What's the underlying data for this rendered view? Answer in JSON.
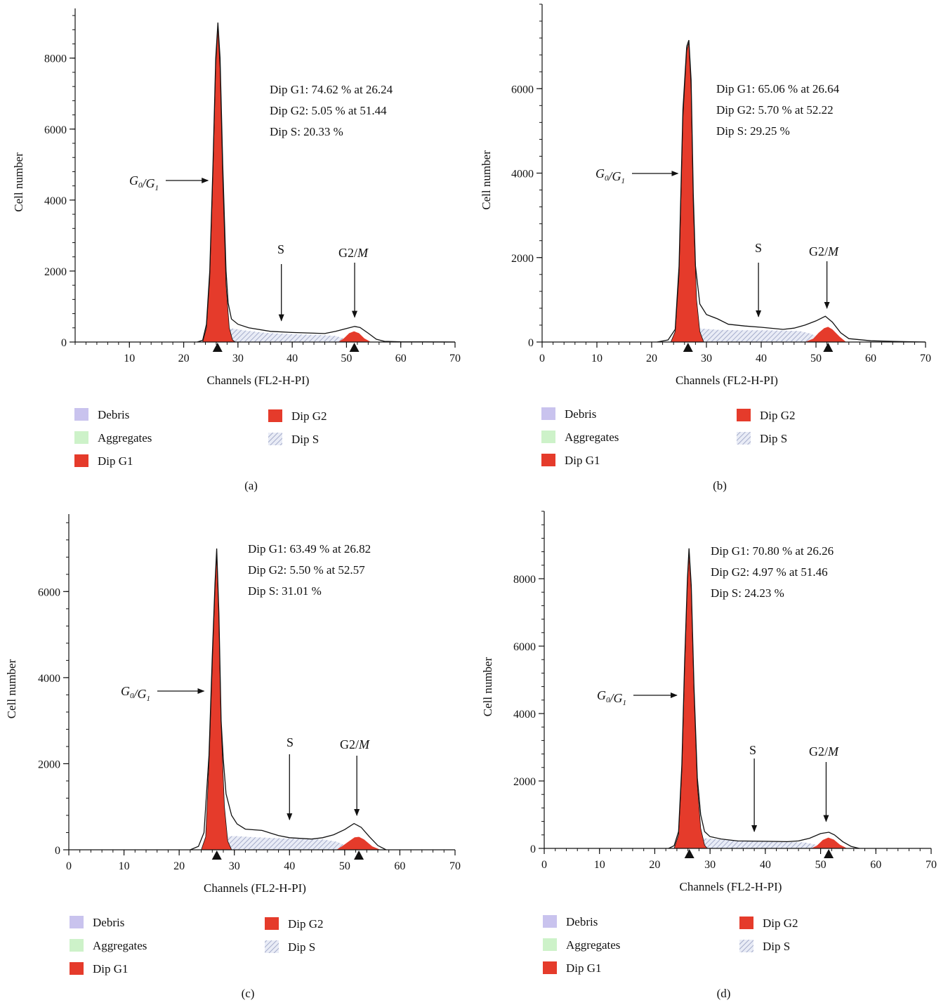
{
  "legend": {
    "items": [
      {
        "label": "Debris",
        "color": "#c9c3ee",
        "kind": "solid"
      },
      {
        "label": "Aggregates",
        "color": "#cdf2c9",
        "kind": "solid"
      },
      {
        "label": "Dip G1",
        "color": "#e53b2b",
        "kind": "solid"
      },
      {
        "label": "Dip G2",
        "color": "#e53b2b",
        "kind": "solid"
      },
      {
        "label": "Dip S",
        "color": "#a9b1cf",
        "kind": "hatch"
      }
    ]
  },
  "annotation_labels": {
    "g0": "G",
    "g0_sub": "0",
    "slash": "/",
    "g1": "G",
    "g1_sub": "1",
    "s": "S",
    "g2": "G2/",
    "m": "M"
  },
  "chart_data": [
    {
      "panel": "(a)",
      "type": "area",
      "xlabel": "Channels (FL2-H-PI)",
      "ylabel": "Cell number",
      "xlim": [
        0,
        70
      ],
      "ylim": [
        0,
        9400
      ],
      "xticks": [
        10,
        20,
        30,
        40,
        50,
        60,
        70
      ],
      "yticks": [
        0,
        2000,
        4000,
        6000,
        8000
      ],
      "stats": [
        "Dip G1: 74.62 % at 26.24",
        "Dip G2: 5.05 % at 51.44",
        "Dip S: 20.33 %"
      ],
      "g1_peak": 26.24,
      "g2_peak": 51.44,
      "arrow_targets": {
        "g1": [
          25,
          5000
        ],
        "s": [
          38,
          600
        ],
        "g2": [
          51.5,
          700
        ]
      },
      "total": [
        [
          22.5,
          0
        ],
        [
          23.5,
          50
        ],
        [
          24.2,
          500
        ],
        [
          24.8,
          2000
        ],
        [
          25.4,
          5000
        ],
        [
          25.9,
          8000
        ],
        [
          26.3,
          9000
        ],
        [
          26.7,
          8000
        ],
        [
          27.2,
          5000
        ],
        [
          27.8,
          2000
        ],
        [
          28.2,
          1100
        ],
        [
          28.8,
          650
        ],
        [
          30,
          500
        ],
        [
          32,
          400
        ],
        [
          36,
          300
        ],
        [
          40,
          270
        ],
        [
          44,
          250
        ],
        [
          46,
          240
        ],
        [
          48,
          300
        ],
        [
          50,
          380
        ],
        [
          51.5,
          440
        ],
        [
          52.5,
          410
        ],
        [
          54,
          250
        ],
        [
          55.5,
          80
        ],
        [
          57,
          20
        ],
        [
          60,
          5
        ],
        [
          70,
          0
        ]
      ],
      "g1": [
        [
          23.5,
          0
        ],
        [
          24.2,
          400
        ],
        [
          24.8,
          1800
        ],
        [
          25.4,
          4800
        ],
        [
          25.9,
          7800
        ],
        [
          26.3,
          8900
        ],
        [
          26.7,
          7700
        ],
        [
          27.2,
          4600
        ],
        [
          27.8,
          1600
        ],
        [
          28.4,
          400
        ],
        [
          29,
          60
        ],
        [
          29.5,
          0
        ]
      ],
      "g2": [
        [
          48.5,
          0
        ],
        [
          49.5,
          100
        ],
        [
          50.5,
          250
        ],
        [
          51.4,
          300
        ],
        [
          52.3,
          250
        ],
        [
          53.3,
          100
        ],
        [
          54.5,
          0
        ]
      ],
      "s": [
        [
          26,
          0
        ],
        [
          27,
          300
        ],
        [
          29,
          380
        ],
        [
          31,
          330
        ],
        [
          35,
          260
        ],
        [
          40,
          220
        ],
        [
          45,
          200
        ],
        [
          48,
          170
        ],
        [
          50,
          80
        ],
        [
          51.5,
          0
        ]
      ]
    },
    {
      "panel": "(b)",
      "type": "area",
      "xlabel": "Channels (FL2-H-PI)",
      "ylabel": "Cell number",
      "xlim": [
        0,
        70
      ],
      "ylim": [
        0,
        8000
      ],
      "xticks": [
        0,
        10,
        20,
        30,
        40,
        50,
        60,
        70
      ],
      "yticks": [
        0,
        2000,
        4000,
        6000
      ],
      "stats": [
        "Dip G1: 65.06 % at 26.64",
        "Dip G2: 5.70 % at 52.22",
        "Dip S: 29.25 %"
      ],
      "g1_peak": 26.64,
      "g2_peak": 52.22,
      "arrow_targets": {
        "g1": [
          25.3,
          4100
        ],
        "s": [
          39.5,
          600
        ],
        "g2": [
          52,
          800
        ]
      },
      "total": [
        [
          21,
          0
        ],
        [
          23,
          50
        ],
        [
          24.3,
          300
        ],
        [
          25,
          1800
        ],
        [
          25.7,
          5500
        ],
        [
          26.4,
          7000
        ],
        [
          26.8,
          7150
        ],
        [
          27.2,
          6200
        ],
        [
          27.6,
          3500
        ],
        [
          28,
          1800
        ],
        [
          28.8,
          900
        ],
        [
          30,
          650
        ],
        [
          32,
          550
        ],
        [
          34,
          420
        ],
        [
          37,
          380
        ],
        [
          40,
          350
        ],
        [
          44,
          300
        ],
        [
          46,
          330
        ],
        [
          48,
          400
        ],
        [
          50,
          500
        ],
        [
          51.7,
          610
        ],
        [
          53,
          470
        ],
        [
          54.5,
          220
        ],
        [
          56,
          80
        ],
        [
          60,
          30
        ],
        [
          66,
          10
        ],
        [
          70,
          0
        ]
      ],
      "g1": [
        [
          23.5,
          0
        ],
        [
          24.3,
          250
        ],
        [
          25,
          1600
        ],
        [
          25.7,
          5300
        ],
        [
          26.4,
          6900
        ],
        [
          26.8,
          7100
        ],
        [
          27.2,
          6000
        ],
        [
          27.6,
          3200
        ],
        [
          28.2,
          1000
        ],
        [
          28.8,
          250
        ],
        [
          29.5,
          0
        ]
      ],
      "g2": [
        [
          48,
          0
        ],
        [
          49.5,
          80
        ],
        [
          50.5,
          220
        ],
        [
          51.5,
          330
        ],
        [
          52.2,
          360
        ],
        [
          53,
          300
        ],
        [
          54.3,
          130
        ],
        [
          55.5,
          0
        ]
      ],
      "s": [
        [
          26,
          0
        ],
        [
          27,
          300
        ],
        [
          29,
          320
        ],
        [
          32,
          290
        ],
        [
          36,
          280
        ],
        [
          40,
          280
        ],
        [
          44,
          270
        ],
        [
          47,
          260
        ],
        [
          49,
          200
        ],
        [
          51,
          80
        ],
        [
          52,
          0
        ]
      ]
    },
    {
      "panel": "(c)",
      "type": "area",
      "xlabel": "Channels (FL2-H-PI)",
      "ylabel": "Cell number",
      "xlim": [
        0,
        70
      ],
      "ylim": [
        0,
        7800
      ],
      "xticks": [
        0,
        10,
        20,
        30,
        40,
        50,
        60,
        70
      ],
      "yticks": [
        0,
        2000,
        4000,
        6000
      ],
      "stats": [
        "Dip G1: 63.49 % at 26.82",
        "Dip G2: 5.50 % at 52.57",
        "Dip S: 31.01 %"
      ],
      "g1_peak": 26.82,
      "g2_peak": 52.57,
      "arrow_targets": {
        "g1": [
          25,
          3950
        ],
        "s": [
          40,
          700
        ],
        "g2": [
          52.2,
          800
        ]
      },
      "total": [
        [
          22,
          0
        ],
        [
          23.5,
          80
        ],
        [
          24.5,
          400
        ],
        [
          25.4,
          2200
        ],
        [
          26,
          4500
        ],
        [
          26.5,
          6200
        ],
        [
          26.8,
          7000
        ],
        [
          27.2,
          5500
        ],
        [
          27.6,
          3000
        ],
        [
          28,
          2100
        ],
        [
          28.5,
          1300
        ],
        [
          29.5,
          800
        ],
        [
          30.5,
          600
        ],
        [
          32,
          480
        ],
        [
          35,
          450
        ],
        [
          38,
          330
        ],
        [
          40,
          280
        ],
        [
          44,
          250
        ],
        [
          46,
          280
        ],
        [
          48,
          350
        ],
        [
          50,
          470
        ],
        [
          51.7,
          610
        ],
        [
          53,
          520
        ],
        [
          54.5,
          300
        ],
        [
          56,
          100
        ],
        [
          57.5,
          0
        ]
      ],
      "g1": [
        [
          24,
          0
        ],
        [
          24.8,
          300
        ],
        [
          25.4,
          2000
        ],
        [
          26,
          4300
        ],
        [
          26.5,
          6100
        ],
        [
          26.8,
          6900
        ],
        [
          27.2,
          5400
        ],
        [
          27.6,
          2900
        ],
        [
          28.2,
          1000
        ],
        [
          28.8,
          200
        ],
        [
          29.5,
          0
        ]
      ],
      "g2": [
        [
          48.5,
          0
        ],
        [
          49.5,
          80
        ],
        [
          50.8,
          200
        ],
        [
          51.8,
          290
        ],
        [
          52.6,
          300
        ],
        [
          53.5,
          240
        ],
        [
          55,
          80
        ],
        [
          56.5,
          0
        ]
      ],
      "s": [
        [
          26.5,
          0
        ],
        [
          27.5,
          300
        ],
        [
          30,
          320
        ],
        [
          34,
          290
        ],
        [
          38,
          270
        ],
        [
          42,
          250
        ],
        [
          46,
          240
        ],
        [
          48.5,
          190
        ],
        [
          50.5,
          80
        ],
        [
          52,
          0
        ]
      ]
    },
    {
      "panel": "(d)",
      "type": "area",
      "xlabel": "Channels (FL2-H-PI)",
      "ylabel": "Cell number",
      "xlim": [
        0,
        70
      ],
      "ylim": [
        0,
        10000
      ],
      "xticks": [
        0,
        10,
        20,
        30,
        40,
        50,
        60,
        70
      ],
      "yticks": [
        0,
        2000,
        4000,
        6000,
        8000
      ],
      "stats": [
        "Dip G1: 70.80 % at 26.26",
        "Dip G2: 4.97 % at 51.46",
        "Dip S: 24.23 %"
      ],
      "g1_peak": 26.26,
      "g2_peak": 51.46,
      "arrow_targets": {
        "g1": [
          24.5,
          4600
        ],
        "s": [
          38,
          500
        ],
        "g2": [
          51,
          800
        ]
      },
      "total": [
        [
          22.5,
          0
        ],
        [
          23.5,
          80
        ],
        [
          24.3,
          500
        ],
        [
          24.9,
          2500
        ],
        [
          25.4,
          5500
        ],
        [
          25.9,
          8000
        ],
        [
          26.2,
          8900
        ],
        [
          26.6,
          7800
        ],
        [
          27.1,
          4800
        ],
        [
          27.7,
          2100
        ],
        [
          28.3,
          1000
        ],
        [
          29,
          500
        ],
        [
          30,
          350
        ],
        [
          32,
          280
        ],
        [
          35,
          220
        ],
        [
          40,
          210
        ],
        [
          44,
          200
        ],
        [
          46,
          220
        ],
        [
          48,
          300
        ],
        [
          50,
          440
        ],
        [
          51.5,
          480
        ],
        [
          52.5,
          400
        ],
        [
          54,
          200
        ],
        [
          55.5,
          60
        ],
        [
          57,
          0
        ]
      ],
      "g1": [
        [
          23.5,
          0
        ],
        [
          24.3,
          400
        ],
        [
          24.9,
          2300
        ],
        [
          25.4,
          5300
        ],
        [
          25.9,
          7900
        ],
        [
          26.2,
          8800
        ],
        [
          26.6,
          7700
        ],
        [
          27.1,
          4600
        ],
        [
          27.7,
          1900
        ],
        [
          28.3,
          600
        ],
        [
          29,
          100
        ],
        [
          29.5,
          0
        ]
      ],
      "g2": [
        [
          48.3,
          0
        ],
        [
          49.3,
          80
        ],
        [
          50.4,
          250
        ],
        [
          51.4,
          320
        ],
        [
          52.4,
          260
        ],
        [
          53.5,
          110
        ],
        [
          54.8,
          0
        ]
      ],
      "s": [
        [
          26,
          0
        ],
        [
          27,
          300
        ],
        [
          29,
          300
        ],
        [
          32,
          260
        ],
        [
          36,
          220
        ],
        [
          40,
          200
        ],
        [
          44,
          190
        ],
        [
          47,
          180
        ],
        [
          49.5,
          100
        ],
        [
          51,
          0
        ]
      ]
    }
  ]
}
